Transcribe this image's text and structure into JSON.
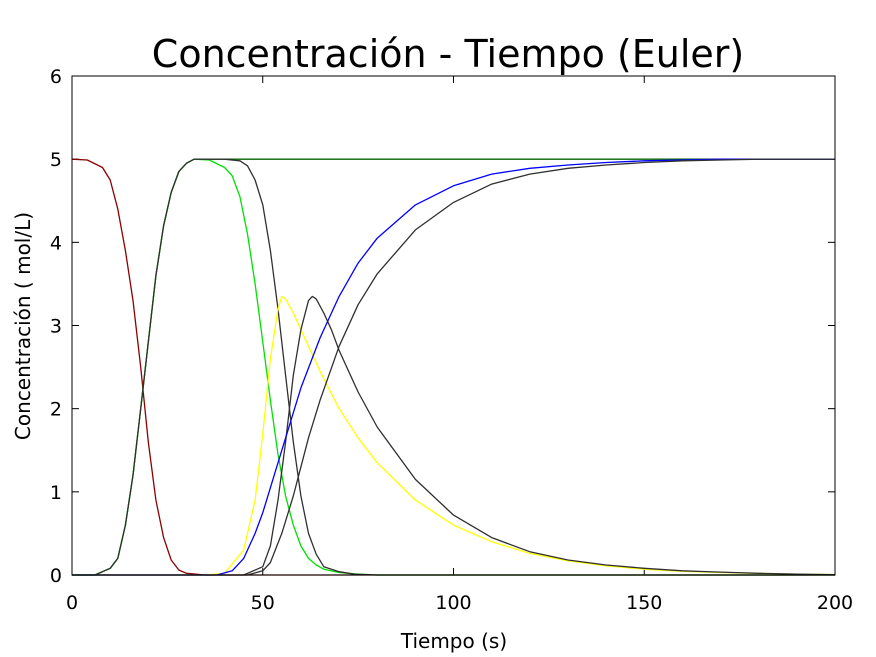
{
  "chart_data": {
    "type": "line",
    "title": "Concentración - Tiempo (Euler)",
    "xlabel": "Tiempo (s)",
    "ylabel": "Concentración ( mol/L)",
    "xlim": [
      0,
      200
    ],
    "ylim": [
      0,
      6
    ],
    "x_ticks": [
      "0",
      "50",
      "100",
      "150",
      "200"
    ],
    "y_ticks": [
      "0",
      "1",
      "2",
      "3",
      "4",
      "5",
      "6"
    ],
    "grid": false,
    "legend": "none",
    "series": [
      {
        "color": "#8b0000",
        "x": [
          0,
          4,
          8,
          10,
          12,
          14,
          16,
          18,
          20,
          22,
          24,
          26,
          28,
          30,
          35,
          40,
          200
        ],
        "y": [
          5,
          4.99,
          4.9,
          4.75,
          4.4,
          3.9,
          3.3,
          2.5,
          1.6,
          0.9,
          0.45,
          0.18,
          0.06,
          0.02,
          0,
          0,
          0
        ]
      },
      {
        "color": "#006400",
        "x": [
          0,
          6,
          10,
          12,
          14,
          16,
          18,
          20,
          22,
          24,
          26,
          28,
          30,
          32,
          34,
          36,
          200
        ],
        "y": [
          0,
          0,
          0.08,
          0.2,
          0.6,
          1.2,
          2.0,
          2.8,
          3.6,
          4.2,
          4.6,
          4.85,
          4.95,
          5,
          5,
          5,
          5
        ]
      },
      {
        "color": "#00e000",
        "x": [
          0,
          6,
          10,
          12,
          14,
          16,
          18,
          20,
          22,
          24,
          26,
          28,
          30,
          32,
          36,
          40,
          42,
          44,
          46,
          48,
          50,
          52,
          54,
          56,
          58,
          60,
          62,
          64,
          66,
          70,
          75,
          80,
          200
        ],
        "y": [
          0,
          0,
          0.08,
          0.2,
          0.6,
          1.2,
          2.0,
          2.8,
          3.6,
          4.2,
          4.6,
          4.85,
          4.95,
          5,
          4.99,
          4.9,
          4.8,
          4.55,
          4.1,
          3.5,
          2.8,
          2.1,
          1.45,
          0.95,
          0.6,
          0.35,
          0.2,
          0.12,
          0.07,
          0.03,
          0.01,
          0,
          0
        ]
      },
      {
        "color": "#303030",
        "x": [
          0,
          6,
          10,
          12,
          14,
          16,
          18,
          20,
          22,
          24,
          26,
          28,
          30,
          32,
          36,
          40,
          44,
          46,
          48,
          50,
          52,
          54,
          56,
          58,
          60,
          62,
          64,
          66,
          70,
          74,
          80,
          200
        ],
        "y": [
          0,
          0,
          0.08,
          0.2,
          0.6,
          1.2,
          2.0,
          2.8,
          3.6,
          4.2,
          4.6,
          4.85,
          4.95,
          5,
          5,
          5,
          4.98,
          4.92,
          4.75,
          4.45,
          3.9,
          3.2,
          2.4,
          1.6,
          0.95,
          0.5,
          0.25,
          0.1,
          0.04,
          0.01,
          0,
          0
        ]
      },
      {
        "color": "#ffff00",
        "x": [
          0,
          35,
          40,
          45,
          48,
          50,
          52,
          54,
          55,
          56,
          58,
          60,
          65,
          70,
          75,
          80,
          90,
          100,
          110,
          120,
          130,
          140,
          150,
          160,
          170,
          180,
          190,
          200
        ],
        "y": [
          0,
          0,
          0.02,
          0.3,
          0.9,
          1.7,
          2.6,
          3.2,
          3.35,
          3.32,
          3.15,
          2.95,
          2.45,
          2.0,
          1.65,
          1.35,
          0.9,
          0.6,
          0.4,
          0.26,
          0.17,
          0.11,
          0.07,
          0.045,
          0.03,
          0.02,
          0.01,
          0.005
        ]
      },
      {
        "color": "#303030",
        "x": [
          0,
          45,
          50,
          52,
          54,
          56,
          58,
          60,
          62,
          63,
          64,
          66,
          68,
          70,
          75,
          80,
          90,
          100,
          110,
          120,
          130,
          140,
          150,
          160,
          170,
          180,
          190,
          200
        ],
        "y": [
          0,
          0,
          0.1,
          0.35,
          0.9,
          1.6,
          2.4,
          2.95,
          3.3,
          3.35,
          3.32,
          3.15,
          2.95,
          2.7,
          2.2,
          1.78,
          1.15,
          0.72,
          0.45,
          0.28,
          0.18,
          0.12,
          0.08,
          0.05,
          0.035,
          0.02,
          0.01,
          0.005
        ]
      },
      {
        "color": "#0000ff",
        "x": [
          0,
          38,
          42,
          45,
          48,
          50,
          52,
          55,
          58,
          60,
          65,
          70,
          75,
          80,
          90,
          100,
          110,
          120,
          130,
          140,
          150,
          160,
          170,
          180,
          190,
          200
        ],
        "y": [
          0,
          0,
          0.05,
          0.2,
          0.5,
          0.75,
          1.05,
          1.5,
          1.95,
          2.25,
          2.85,
          3.35,
          3.75,
          4.05,
          4.45,
          4.68,
          4.82,
          4.89,
          4.93,
          4.96,
          4.98,
          4.99,
          5,
          5,
          5,
          5
        ]
      },
      {
        "color": "#303030",
        "x": [
          0,
          46,
          50,
          52,
          55,
          58,
          60,
          62,
          65,
          70,
          75,
          80,
          90,
          100,
          110,
          120,
          130,
          140,
          150,
          160,
          170,
          180,
          190,
          200
        ],
        "y": [
          0,
          0,
          0.05,
          0.15,
          0.5,
          0.95,
          1.3,
          1.65,
          2.1,
          2.75,
          3.25,
          3.62,
          4.15,
          4.48,
          4.7,
          4.82,
          4.89,
          4.93,
          4.96,
          4.98,
          4.99,
          5,
          5,
          5
        ]
      }
    ]
  }
}
